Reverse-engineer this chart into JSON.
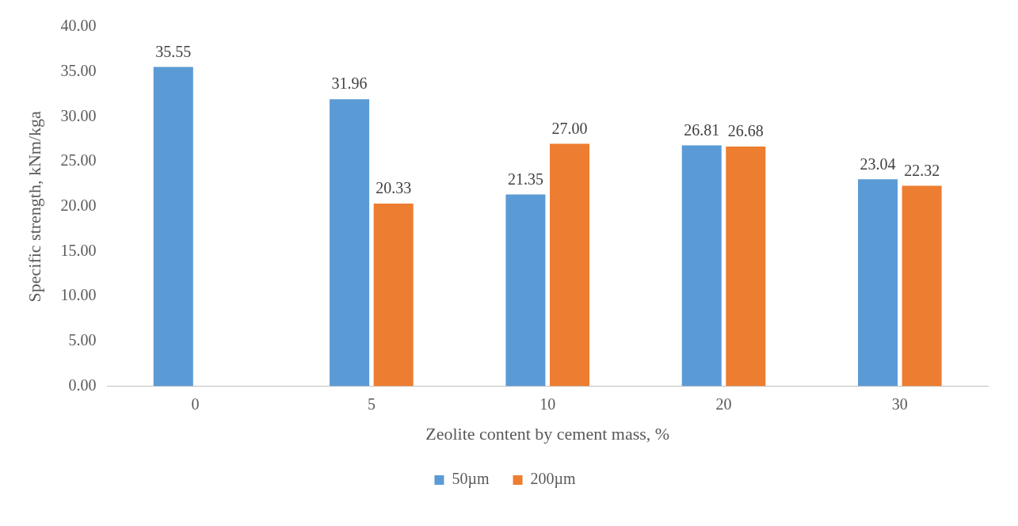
{
  "chart_data": {
    "type": "bar",
    "xlabel": "Zeolite content by cement mass, %",
    "ylabel": "Specific strength, kNm/kga",
    "categories": [
      "0",
      "5",
      "10",
      "20",
      "30"
    ],
    "series": [
      {
        "name": "50µm",
        "color": "#5b9bd5",
        "values": [
          35.55,
          31.96,
          21.35,
          26.81,
          23.04
        ],
        "value_labels": [
          "35.55",
          "31.96",
          "21.35",
          "26.81",
          "23.04"
        ]
      },
      {
        "name": "200µm",
        "color": "#ed7d31",
        "values": [
          null,
          20.33,
          27.0,
          26.68,
          22.32
        ],
        "value_labels": [
          null,
          "20.33",
          "27.00",
          "26.68",
          "22.32"
        ]
      }
    ],
    "ylim": [
      0,
      40
    ],
    "yticks": [
      {
        "value": 0,
        "label": "0.00"
      },
      {
        "value": 5,
        "label": "5.00"
      },
      {
        "value": 10,
        "label": "10.00"
      },
      {
        "value": 15,
        "label": "15.00"
      },
      {
        "value": 20,
        "label": "20.00"
      },
      {
        "value": 25,
        "label": "25.00"
      },
      {
        "value": 30,
        "label": "30.00"
      },
      {
        "value": 35,
        "label": "35.00"
      },
      {
        "value": 40,
        "label": "40.00"
      }
    ],
    "grid": false,
    "legend": "bottom"
  }
}
